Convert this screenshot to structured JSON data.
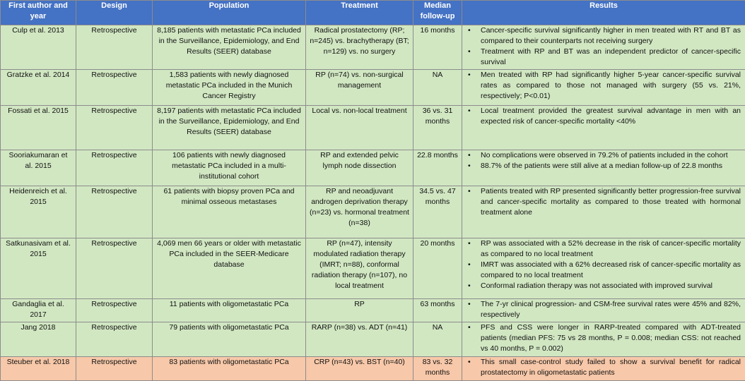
{
  "headers": {
    "author": "First author and year",
    "design": "Design",
    "population": "Population",
    "treatment": "Treatment",
    "follow_up": "Median follow-up",
    "results": "Results"
  },
  "bullet": "•",
  "colors": {
    "header": "#4472c4",
    "row": "#d1e7c2",
    "highlight_row": "#f7c8a9"
  },
  "rows": [
    {
      "author": "Culp et al. 2013",
      "design": "Retrospective",
      "population": "8,185 patients with metastatic PCa included in the Surveillance, Epidemiology, and End Results (SEER) database",
      "treatment": "Radical prostatectomy (RP; n=245) vs. brachytherapy (BT; n=129) vs. no surgery",
      "follow_up": "16 months",
      "results": [
        "Cancer-specific survival significantly higher in men treated with RT and BT as compared to their counterparts not receiving surgery",
        "Treatment with RP and BT was an independent predictor of cancer-specific survival"
      ]
    },
    {
      "author": "Gratzke et al. 2014",
      "design": "Retrospective",
      "population": "1,583 patients with newly diagnosed metastatic PCa included in the Munich Cancer Registry",
      "treatment": "RP (n=74) vs. non-surgical management",
      "follow_up": "NA",
      "results": [
        "Men treated with RP had significantly higher 5-year cancer-specific survival rates as compared to those not managed with surgery (55 vs. 21%, respectively; P<0.01)"
      ]
    },
    {
      "author": "Fossati et al. 2015",
      "design": "Retrospective",
      "population": "8,197 patients with metastatic PCa included in the Surveillance, Epidemiology, and End Results (SEER) database",
      "treatment": "Local vs. non-local treatment",
      "follow_up": "36 vs. 31 months",
      "results": [
        "Local treatment provided the greatest survival advantage in men with an expected risk of cancer-specific mortality <40%"
      ]
    },
    {
      "author": "Sooriakumaran et al. 2015",
      "design": "Retrospective",
      "population": "106 patients with newly diagnosed metastatic PCa included in a multi-institutional cohort",
      "treatment": "RP and extended pelvic lymph node dissection",
      "follow_up": "22.8 months",
      "results": [
        "No complications were observed in 79.2% of patients included in the cohort",
        "88.7% of the patients were still alive at a median follow-up of 22.8 months"
      ]
    },
    {
      "author": "Heidenreich et al. 2015",
      "design": "Retrospective",
      "population": "61 patients with biopsy proven PCa and minimal osseous metastases",
      "treatment": "RP and neoadjuvant androgen deprivation therapy (n=23) vs. hormonal treatment (n=38)",
      "follow_up": "34.5 vs. 47 months",
      "results": [
        "Patients treated with RP presented significantly better progression-free survival and cancer-specific mortality as compared to those treated with hormonal treatment alone"
      ]
    },
    {
      "author": "Satkunasivam et al. 2015",
      "design": "Retrospective",
      "population": "4,069 men 66 years or older with metastatic PCa included in the SEER-Medicare database",
      "treatment": "RP (n=47), intensity modulated radiation therapy (IMRT; n=88), conformal radiation therapy (n=107), no local treatment",
      "follow_up": "20 months",
      "results": [
        "RP was associated with a 52% decrease in the risk of cancer-specific mortality as compared to no local treatment",
        "IMRT was associated with a 62% decreased risk of cancer-specific mortality as compared to no local treatment",
        "Conformal radiation therapy was not associated with improved survival"
      ]
    },
    {
      "author": "Gandaglia et al. 2017",
      "design": "Retrospective",
      "population": "11 patients with oligometastatic PCa",
      "treatment": "RP",
      "follow_up": "63 months",
      "results": [
        "The 7-yr clinical progression- and CSM-free survival rates were 45% and 82%, respectively"
      ]
    },
    {
      "author": "Jang 2018",
      "design": "Retrospective",
      "population": "79 patients with oligometastatic PCa",
      "treatment": "RARP (n=38) vs. ADT (n=41)",
      "follow_up": "NA",
      "results": [
        "PFS and CSS were longer in RARP-treated compared with ADT-treated patients (median PFS: 75 vs 28 months, P = 0.008; median CSS: not reached vs 40 months, P = 0.002)"
      ]
    },
    {
      "author": "Steuber et al. 2018",
      "design": "Retrospective",
      "population": "83 patients with oligometastatic PCa",
      "treatment": "CRP (n=43) vs. BST (n=40)",
      "follow_up": "83 vs. 32 months",
      "results": [
        "This small case-control study failed to show a survival benefit for radical prostatectomy in oligometastatic patients"
      ]
    }
  ]
}
